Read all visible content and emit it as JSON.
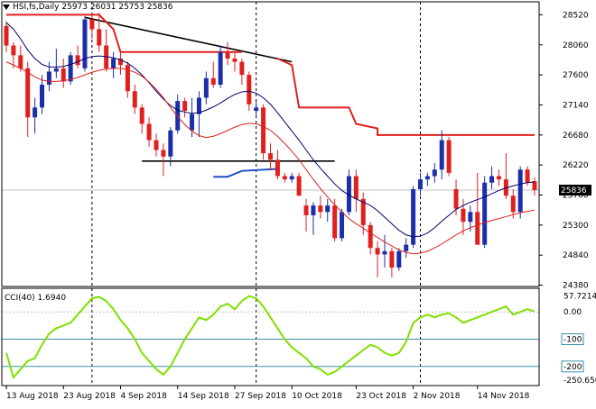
{
  "header": {
    "symbol_label": "HSI,fs,Daily",
    "ohlc_text": "25973 26031 25753 25836"
  },
  "indicator": {
    "label": "CCI(40) 1.6940"
  },
  "colors": {
    "bull": "#1c2fa8",
    "bear": "#e0201e",
    "sma_fast": "#00006e",
    "sma_slow": "#e0201e",
    "channel": "#e0201e",
    "trendline": "#000000",
    "blue_line": "#1f4fc8",
    "cci": "#7fe000",
    "level": "#3b8fa8"
  },
  "chart_data": [
    {
      "type": "candlestick",
      "title": "",
      "y_axis_ticks": [
        28520,
        28060,
        27600,
        27140,
        26680,
        26220,
        25760,
        25300,
        24840,
        24380
      ],
      "last_price": 25836,
      "last_price_label": "25836",
      "x_axis_labels": [
        "13 Aug 2018",
        "23 Aug 2018",
        "4 Sep 2018",
        "14 Sep 2018",
        "27 Sep 2018",
        "10 Oct 2018",
        "23 Oct 2018",
        "2 Nov 2018",
        "14 Nov 2018"
      ],
      "ylim": [
        24360,
        28650
      ],
      "candles": [
        [
          28350,
          28420,
          27950,
          28050
        ],
        [
          28050,
          28100,
          27700,
          27900
        ],
        [
          27900,
          28050,
          27650,
          27700
        ],
        [
          27700,
          27800,
          26650,
          26950
        ],
        [
          26950,
          27250,
          26700,
          27100
        ],
        [
          27100,
          27600,
          27000,
          27450
        ],
        [
          27450,
          27800,
          27350,
          27650
        ],
        [
          27650,
          28000,
          27550,
          27700
        ],
        [
          27700,
          27850,
          27400,
          27500
        ],
        [
          27500,
          27950,
          27450,
          27900
        ],
        [
          27900,
          28050,
          27700,
          27750
        ],
        [
          27700,
          28500,
          27650,
          28450
        ],
        [
          28450,
          28520,
          28150,
          28300
        ],
        [
          28300,
          28550,
          27950,
          28050
        ],
        [
          28050,
          28300,
          27650,
          27700
        ],
        [
          27700,
          27950,
          27550,
          27850
        ],
        [
          27850,
          27950,
          27600,
          27750
        ],
        [
          27750,
          27800,
          27250,
          27350
        ],
        [
          27350,
          27450,
          27000,
          27100
        ],
        [
          27100,
          27150,
          26700,
          26850
        ],
        [
          26850,
          26950,
          26500,
          26600
        ],
        [
          26600,
          26700,
          26350,
          26450
        ],
        [
          26450,
          26550,
          26050,
          26350
        ],
        [
          26350,
          26800,
          26200,
          26750
        ],
        [
          26750,
          27300,
          26700,
          27200
        ],
        [
          27200,
          27250,
          26950,
          27050
        ],
        [
          26750,
          27250,
          26650,
          27000
        ],
        [
          27000,
          27350,
          26650,
          27250
        ],
        [
          27250,
          27650,
          27150,
          27550
        ],
        [
          27550,
          27800,
          27400,
          27450
        ],
        [
          27450,
          28050,
          27400,
          27950
        ],
        [
          27950,
          28100,
          27750,
          27850
        ],
        [
          27850,
          27950,
          27650,
          27800
        ],
        [
          27800,
          27850,
          27450,
          27600
        ],
        [
          27600,
          27650,
          27050,
          27150
        ],
        [
          27050,
          27200,
          26950,
          27100
        ],
        [
          27100,
          27150,
          26300,
          26400
        ],
        [
          26400,
          26550,
          26150,
          26300
        ],
        [
          26300,
          26450,
          26000,
          26050
        ],
        [
          26050,
          26100,
          25950,
          26000
        ],
        [
          26000,
          26100,
          25950,
          26050
        ],
        [
          26050,
          26100,
          25750,
          25750
        ],
        [
          25600,
          25700,
          25200,
          25450
        ],
        [
          25450,
          25650,
          25150,
          25600
        ],
        [
          25600,
          25750,
          25400,
          25500
        ],
        [
          25500,
          25700,
          25350,
          25600
        ],
        [
          25600,
          25700,
          25050,
          25100
        ],
        [
          25100,
          25550,
          25050,
          25500
        ],
        [
          25500,
          26150,
          25450,
          26050
        ],
        [
          26050,
          26150,
          25500,
          25700
        ],
        [
          25700,
          25800,
          25150,
          25300
        ],
        [
          25300,
          25350,
          24850,
          24950
        ],
        [
          24950,
          25050,
          24500,
          24850
        ],
        [
          24850,
          25150,
          24650,
          24900
        ],
        [
          24900,
          24950,
          24500,
          24650
        ],
        [
          24650,
          24950,
          24600,
          24900
        ],
        [
          24900,
          25100,
          24800,
          25000
        ],
        [
          25000,
          25900,
          24950,
          25850
        ],
        [
          25850,
          26100,
          25750,
          26000
        ],
        [
          26000,
          26100,
          25900,
          26050
        ],
        [
          26050,
          26250,
          25950,
          26150
        ],
        [
          26150,
          26750,
          26000,
          26600
        ],
        [
          26600,
          26650,
          26050,
          26100
        ],
        [
          25850,
          26000,
          25450,
          25550
        ],
        [
          25550,
          25700,
          25150,
          25350
        ],
        [
          25350,
          25600,
          25200,
          25500
        ],
        [
          25500,
          26100,
          25000,
          25000
        ],
        [
          25000,
          26050,
          24950,
          25950
        ],
        [
          25950,
          26200,
          25850,
          26050
        ],
        [
          26050,
          26150,
          25900,
          26000
        ],
        [
          26000,
          26400,
          25700,
          25750
        ],
        [
          25750,
          25850,
          25400,
          25500
        ],
        [
          25500,
          26200,
          25400,
          26150
        ],
        [
          26150,
          26200,
          25900,
          25950
        ],
        [
          25973,
          26031,
          25753,
          25836
        ]
      ],
      "sma_fast": [
        28400,
        28300,
        28150,
        27980,
        27850,
        27760,
        27720,
        27720,
        27730,
        27760,
        27800,
        27850,
        27880,
        27890,
        27880,
        27860,
        27830,
        27780,
        27700,
        27600,
        27480,
        27350,
        27230,
        27130,
        27060,
        27030,
        27010,
        27020,
        27060,
        27110,
        27170,
        27240,
        27300,
        27340,
        27350,
        27320,
        27250,
        27150,
        27020,
        26880,
        26740,
        26600,
        26450,
        26300,
        26170,
        26050,
        25930,
        25830,
        25760,
        25700,
        25650,
        25600,
        25520,
        25420,
        25320,
        25220,
        25150,
        25120,
        25130,
        25180,
        25260,
        25360,
        25450,
        25540,
        25600,
        25650,
        25690,
        25730,
        25780,
        25830,
        25870,
        25900,
        25930,
        25950,
        25960
      ],
      "sma_slow": [
        27800,
        27750,
        27700,
        27640,
        27570,
        27520,
        27500,
        27500,
        27510,
        27530,
        27560,
        27600,
        27640,
        27670,
        27690,
        27700,
        27700,
        27680,
        27640,
        27580,
        27490,
        27380,
        27250,
        27100,
        26960,
        26840,
        26740,
        26670,
        26640,
        26660,
        26700,
        26750,
        26800,
        26840,
        26860,
        26850,
        26810,
        26750,
        26660,
        26550,
        26430,
        26300,
        26150,
        26000,
        25860,
        25730,
        25610,
        25500,
        25400,
        25320,
        25250,
        25180,
        25110,
        25040,
        24980,
        24920,
        24880,
        24860,
        24870,
        24900,
        24950,
        25010,
        25080,
        25150,
        25210,
        25260,
        25300,
        25340,
        25370,
        25400,
        25430,
        25460,
        25490,
        25510,
        25530
      ],
      "cci_ticks": [
        57.7214,
        0.0,
        -100,
        -200,
        -250.65
      ],
      "cci_current": 1.694,
      "cci_values": [
        -150,
        -240,
        -210,
        -180,
        -170,
        -120,
        -80,
        -60,
        -50,
        -40,
        -10,
        20,
        50,
        55,
        40,
        10,
        -30,
        -60,
        -100,
        -150,
        -180,
        -210,
        -230,
        -200,
        -150,
        -100,
        -60,
        -20,
        -30,
        -10,
        20,
        30,
        10,
        40,
        58,
        50,
        20,
        -20,
        -60,
        -100,
        -130,
        -150,
        -170,
        -200,
        -210,
        -230,
        -220,
        -200,
        -180,
        -160,
        -140,
        -120,
        -130,
        -150,
        -160,
        -150,
        -110,
        -40,
        -20,
        -10,
        -20,
        -10,
        -5,
        -20,
        -40,
        -30,
        -20,
        -10,
        0,
        10,
        20,
        -10,
        0,
        10,
        1.694
      ]
    }
  ]
}
